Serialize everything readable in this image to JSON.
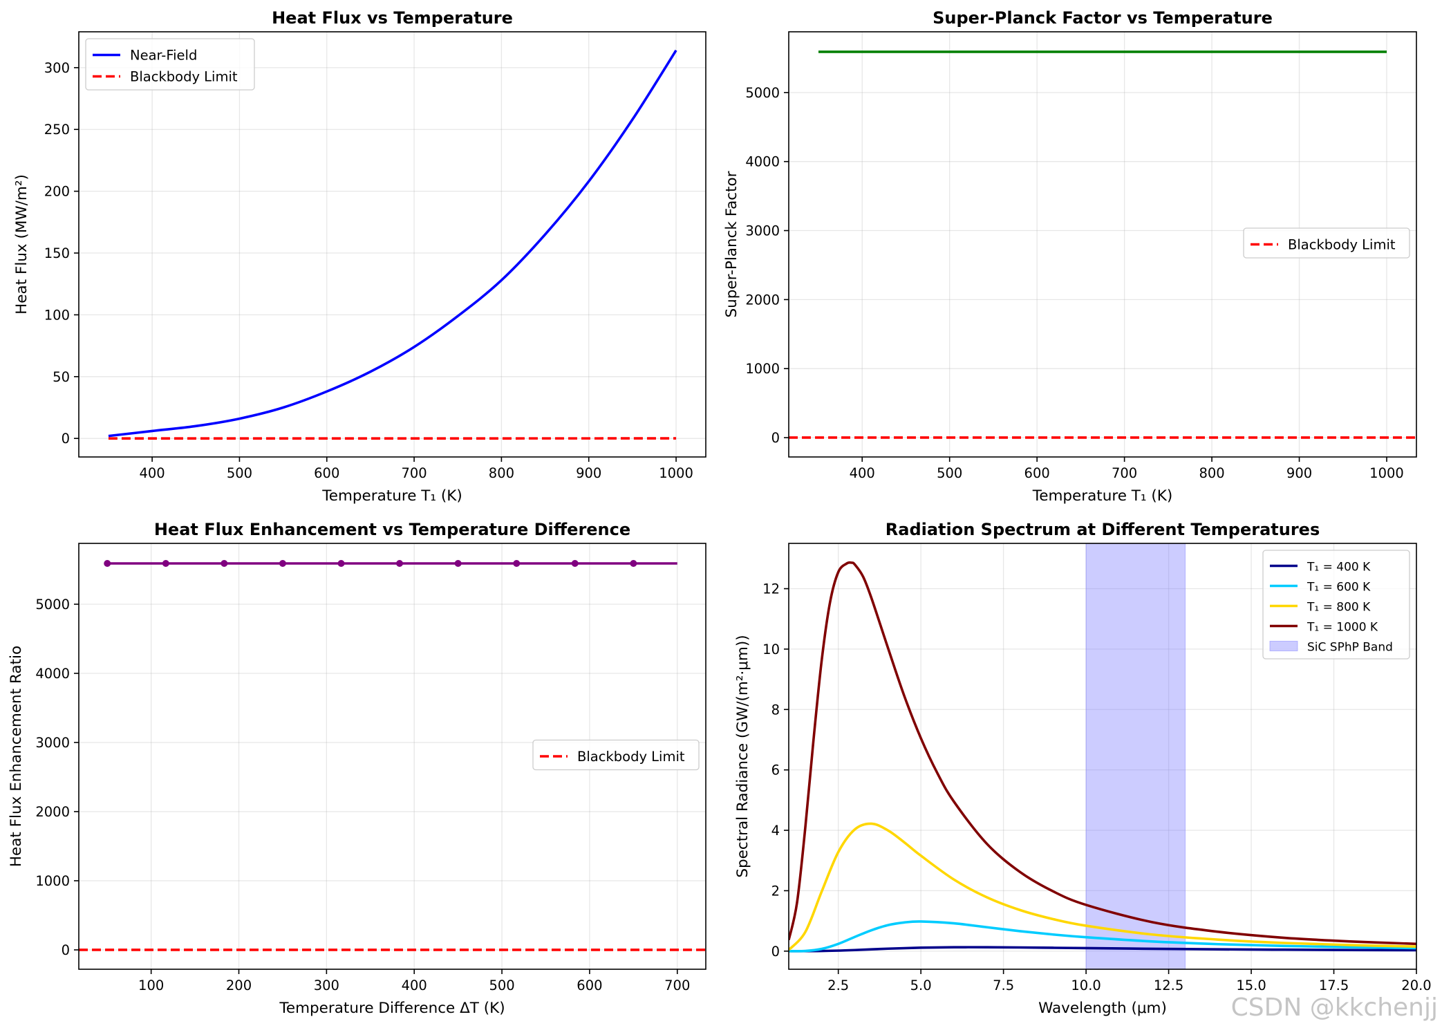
{
  "watermark": "CSDN @kkchenjj",
  "chart_data": [
    {
      "type": "line",
      "title": "Heat Flux vs Temperature",
      "xlabel": "Temperature T₁ (K)",
      "ylabel": "Heat Flux (MW/m²)",
      "xlim": [
        316,
        1034
      ],
      "ylim": [
        -15,
        329
      ],
      "xticks": [
        400,
        500,
        600,
        700,
        800,
        900,
        1000
      ],
      "yticks": [
        0,
        50,
        100,
        150,
        200,
        250,
        300
      ],
      "grid": true,
      "legend_position": "upper left",
      "series": [
        {
          "name": "Near-Field",
          "color": "#0000ff",
          "style": "solid",
          "x": [
            350,
            400,
            450,
            500,
            550,
            600,
            650,
            700,
            750,
            800,
            850,
            900,
            950,
            1000
          ],
          "y": [
            2,
            6,
            10,
            16,
            25,
            38,
            54,
            74,
            99,
            128,
            165,
            208,
            258,
            314
          ]
        },
        {
          "name": "Blackbody Limit",
          "color": "#ff0000",
          "style": "dashed",
          "x": [
            350,
            400,
            450,
            500,
            550,
            600,
            650,
            700,
            750,
            800,
            850,
            900,
            950,
            1000
          ],
          "y": [
            0.0007,
            0.0011,
            0.0019,
            0.0031,
            0.0047,
            0.0069,
            0.0097,
            0.0132,
            0.0176,
            0.0229,
            0.0293,
            0.0369,
            0.0459,
            0.0563
          ]
        }
      ]
    },
    {
      "type": "line",
      "title": "Super-Planck Factor vs Temperature",
      "xlabel": "Temperature T₁ (K)",
      "ylabel": "Super-Planck Factor",
      "xlim": [
        316,
        1034
      ],
      "ylim": [
        -280,
        5880
      ],
      "xticks": [
        400,
        500,
        600,
        700,
        800,
        900,
        1000
      ],
      "yticks": [
        0,
        1000,
        2000,
        3000,
        4000,
        5000
      ],
      "grid": true,
      "legend_position": "center right",
      "series": [
        {
          "name": "",
          "color": "#008000",
          "style": "solid",
          "x": [
            350,
            1000
          ],
          "y": [
            5590,
            5590
          ]
        },
        {
          "name": "Blackbody Limit",
          "color": "#ff0000",
          "style": "dashed",
          "axhline": true,
          "y_const": 1
        }
      ]
    },
    {
      "type": "line",
      "title": "Heat Flux Enhancement vs Temperature Difference",
      "xlabel": "Temperature Difference ΔT (K)",
      "ylabel": "Heat Flux Enhancement Ratio",
      "xlim": [
        17.5,
        732.5
      ],
      "ylim": [
        -280,
        5880
      ],
      "xticks": [
        100,
        200,
        300,
        400,
        500,
        600,
        700
      ],
      "yticks": [
        0,
        1000,
        2000,
        3000,
        4000,
        5000
      ],
      "grid": true,
      "legend_position": "center right",
      "series": [
        {
          "name": "",
          "color": "#800080",
          "style": "solid",
          "markers_every": 6,
          "x": [
            50,
            61.4,
            72.8,
            84.2,
            95.6,
            107,
            116.7,
            128.1,
            139.5,
            150.9,
            162.3,
            173.7,
            183.3,
            194.7,
            206.1,
            217.5,
            228.9,
            240.3,
            250,
            261.4,
            272.8,
            284.2,
            295.6,
            307,
            316.7,
            328.1,
            339.5,
            350.9,
            362.3,
            373.7,
            383.3,
            394.7,
            406.1,
            417.5,
            428.9,
            440.3,
            450,
            461.4,
            472.8,
            484.2,
            495.6,
            507,
            516.7,
            528.1,
            539.5,
            550.9,
            562.3,
            573.7,
            583.3,
            594.7,
            606.1,
            617.5,
            628.9,
            640.3,
            650,
            661.4,
            672.8,
            684.2,
            695.6,
            700
          ],
          "y": [
            5590,
            5590,
            5590,
            5590,
            5590,
            5590,
            5590,
            5590,
            5590,
            5590,
            5590,
            5590,
            5590,
            5590,
            5590,
            5590,
            5590,
            5590,
            5590,
            5590,
            5590,
            5590,
            5590,
            5590,
            5590,
            5590,
            5590,
            5590,
            5590,
            5590,
            5590,
            5590,
            5590,
            5590,
            5590,
            5590,
            5590,
            5590,
            5590,
            5590,
            5590,
            5590,
            5590,
            5590,
            5590,
            5590,
            5590,
            5590,
            5590,
            5590,
            5590,
            5590,
            5590,
            5590,
            5590,
            5590,
            5590,
            5590,
            5590,
            5590
          ]
        },
        {
          "name": "Blackbody Limit",
          "color": "#ff0000",
          "style": "dashed",
          "axhline": true,
          "y_const": 1
        }
      ]
    },
    {
      "type": "line",
      "title": "Radiation Spectrum at Different Temperatures",
      "xlabel": "Wavelength (μm)",
      "ylabel": "Spectral Radiance (GW/(m²·μm))",
      "xlim": [
        1,
        20
      ],
      "ylim": [
        -0.6,
        13.5
      ],
      "xticks": [
        2.5,
        5.0,
        7.5,
        10.0,
        12.5,
        15.0,
        17.5,
        20.0
      ],
      "yticks": [
        0,
        2,
        4,
        6,
        8,
        10,
        12
      ],
      "grid": true,
      "legend_position": "upper right",
      "shaded_band": {
        "name": "SiC SPhP Band",
        "x": [
          10,
          13
        ],
        "color": "#8080ff"
      },
      "series": [
        {
          "name": "T₁ = 400 K",
          "color": "#00008b",
          "style": "solid",
          "x": [
            1,
            2,
            3,
            4,
            5,
            6,
            7,
            8,
            9,
            10,
            12,
            14,
            16,
            18,
            20
          ],
          "y": [
            0.0,
            0.004,
            0.035,
            0.081,
            0.114,
            0.128,
            0.128,
            0.121,
            0.11,
            0.099,
            0.077,
            0.06,
            0.047,
            0.037,
            0.03
          ]
        },
        {
          "name": "T₁ = 600 K",
          "color": "#00ccff",
          "style": "solid",
          "x": [
            1,
            1.5,
            2,
            2.5,
            3,
            3.5,
            4,
            4.5,
            5,
            6,
            7,
            8,
            9,
            10,
            12,
            14,
            16,
            18,
            20
          ],
          "y": [
            0.0,
            0.006,
            0.074,
            0.24,
            0.47,
            0.69,
            0.86,
            0.95,
            0.98,
            0.92,
            0.79,
            0.66,
            0.55,
            0.46,
            0.32,
            0.23,
            0.17,
            0.13,
            0.1
          ]
        },
        {
          "name": "T₁ = 800 K",
          "color": "#ffd700",
          "style": "solid",
          "x": [
            1,
            1.5,
            2,
            2.5,
            3,
            3.5,
            4,
            4.5,
            5,
            6,
            7,
            8,
            9,
            10,
            12,
            14,
            16,
            18,
            20
          ],
          "y": [
            0.04,
            0.63,
            1.98,
            3.28,
            4.03,
            4.22,
            4.0,
            3.6,
            3.16,
            2.37,
            1.78,
            1.36,
            1.06,
            0.84,
            0.55,
            0.38,
            0.27,
            0.2,
            0.15
          ]
        },
        {
          "name": "T₁ = 1000 K",
          "color": "#800000",
          "style": "solid",
          "x": [
            1,
            1.25,
            1.5,
            1.75,
            2,
            2.25,
            2.5,
            2.75,
            2.9,
            3,
            3.25,
            3.5,
            4,
            4.5,
            5,
            5.5,
            6,
            7,
            8,
            9,
            10,
            12,
            14,
            16,
            18,
            20
          ],
          "y": [
            0.37,
            1.6,
            4.08,
            7.0,
            9.65,
            11.55,
            12.55,
            12.83,
            12.86,
            12.8,
            12.4,
            11.7,
            10.05,
            8.44,
            7.05,
            5.89,
            4.95,
            3.55,
            2.62,
            1.98,
            1.53,
            0.96,
            0.64,
            0.44,
            0.32,
            0.24
          ]
        }
      ]
    }
  ]
}
